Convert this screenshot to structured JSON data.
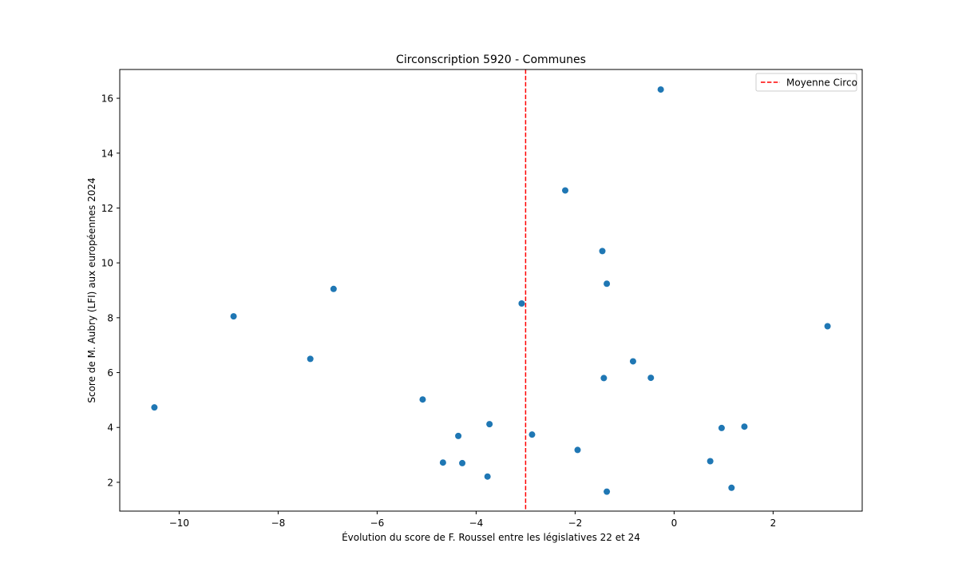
{
  "chart_data": {
    "type": "scatter",
    "title": "Circonscription 5920 - Communes",
    "xlabel": "Évolution du score de F. Roussel entre les législatives 22 et 24",
    "ylabel": "Score de M. Aubry (LFI) aux européennes 2024",
    "xlim": [
      -11.2,
      3.8
    ],
    "ylim": [
      0.95,
      17.05
    ],
    "xticks": [
      -10,
      -8,
      -6,
      -4,
      -2,
      0,
      2
    ],
    "xtick_labels": [
      "−10",
      "−8",
      "−6",
      "−4",
      "−2",
      "0",
      "2"
    ],
    "yticks": [
      2,
      4,
      6,
      8,
      10,
      12,
      14,
      16
    ],
    "ytick_labels": [
      "2",
      "4",
      "6",
      "8",
      "10",
      "12",
      "14",
      "16"
    ],
    "grid": false,
    "legend_position": "top-right",
    "points_color": "#1f77b4",
    "points": [
      {
        "x": -10.5,
        "y": 4.73
      },
      {
        "x": -8.9,
        "y": 8.05
      },
      {
        "x": -7.35,
        "y": 6.5
      },
      {
        "x": -6.88,
        "y": 9.05
      },
      {
        "x": -5.08,
        "y": 5.02
      },
      {
        "x": -4.67,
        "y": 2.72
      },
      {
        "x": -4.36,
        "y": 3.69
      },
      {
        "x": -4.28,
        "y": 2.7
      },
      {
        "x": -3.77,
        "y": 2.21
      },
      {
        "x": -3.73,
        "y": 4.12
      },
      {
        "x": -3.08,
        "y": 8.52
      },
      {
        "x": -2.87,
        "y": 3.74
      },
      {
        "x": -2.2,
        "y": 12.64
      },
      {
        "x": -1.95,
        "y": 3.18
      },
      {
        "x": -1.45,
        "y": 10.43
      },
      {
        "x": -1.42,
        "y": 5.8
      },
      {
        "x": -1.36,
        "y": 9.24
      },
      {
        "x": -1.36,
        "y": 1.66
      },
      {
        "x": -0.83,
        "y": 6.41
      },
      {
        "x": -0.47,
        "y": 5.81
      },
      {
        "x": -0.27,
        "y": 16.32
      },
      {
        "x": 0.73,
        "y": 2.77
      },
      {
        "x": 0.96,
        "y": 3.98
      },
      {
        "x": 1.16,
        "y": 1.8
      },
      {
        "x": 1.42,
        "y": 4.03
      },
      {
        "x": 3.1,
        "y": 7.69
      }
    ],
    "reference_line": {
      "orientation": "vertical",
      "x": -3.0,
      "name": "Moyenne Circo",
      "color": "#ff0000",
      "style": "dashed"
    }
  }
}
